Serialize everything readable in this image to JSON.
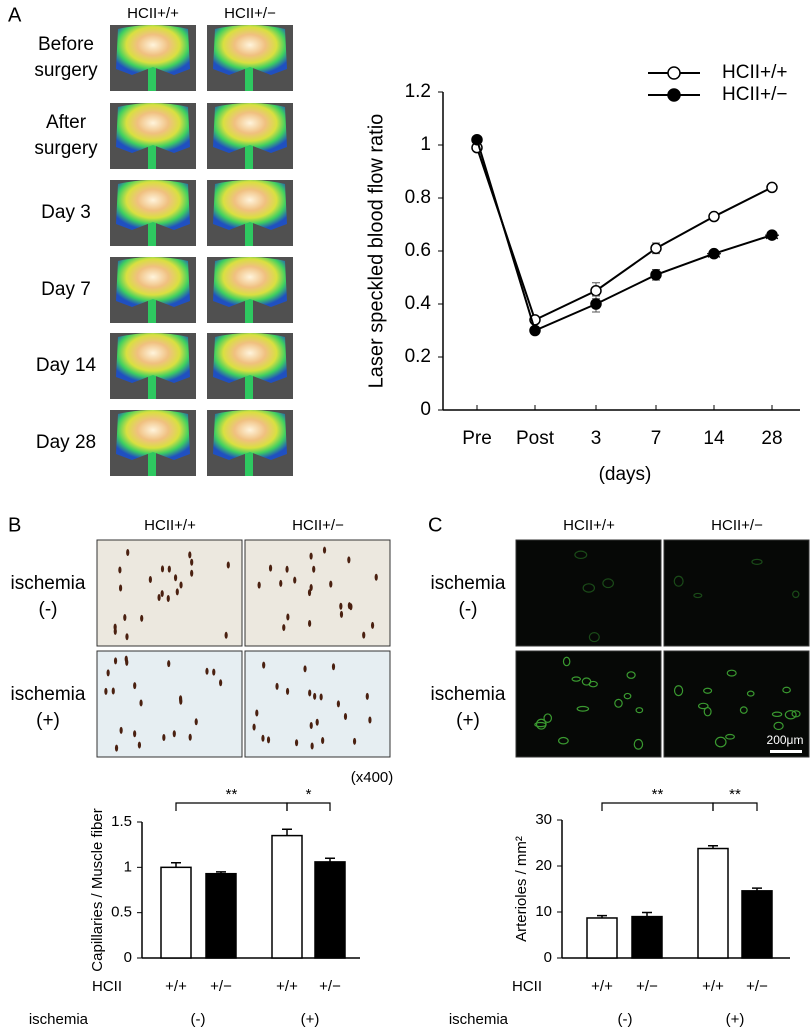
{
  "figure": {
    "panel_a": {
      "label": "A",
      "columns": [
        "HCII+/+",
        "HCII+/−"
      ],
      "rows": [
        [
          "Before",
          "surgery"
        ],
        [
          "After",
          "surgery"
        ],
        [
          "Day 3"
        ],
        [
          "Day 7"
        ],
        [
          "Day 14"
        ],
        [
          "Day 28"
        ]
      ]
    },
    "panel_b": {
      "label": "B",
      "columns": [
        "HCII+/+",
        "HCII+/−"
      ],
      "rows": [
        [
          "ischemia",
          "(-)"
        ],
        [
          "ischemia",
          "(+)"
        ]
      ],
      "magnification": "(x400)"
    },
    "panel_c": {
      "label": "C",
      "columns": [
        "HCII+/+",
        "HCII+/−"
      ],
      "rows": [
        [
          "ischemia",
          "(-)"
        ],
        [
          "ischemia",
          "(+)"
        ]
      ],
      "scale_bar": "200μm"
    }
  },
  "chart_data": [
    {
      "type": "line",
      "ylabel": "Laser speckled blood flow ratio",
      "xlabel": "(days)",
      "categories": [
        "Pre",
        "Post",
        "3",
        "7",
        "14",
        "28"
      ],
      "ylim": [
        0,
        1.2
      ],
      "yticks": [
        0,
        0.2,
        0.4,
        0.6,
        0.8,
        1,
        1.2
      ],
      "series": [
        {
          "name": "HCII+/+",
          "color": "#000000",
          "marker": "open",
          "values": [
            0.99,
            0.34,
            0.45,
            0.61,
            0.73,
            0.84
          ],
          "errors": [
            0.01,
            0.01,
            0.03,
            0.02,
            0.01,
            0.01
          ]
        },
        {
          "name": "HCII+/−",
          "color": "#000000",
          "marker": "filled",
          "values": [
            1.02,
            0.3,
            0.4,
            0.51,
            0.59,
            0.66
          ],
          "errors": [
            0.01,
            0.01,
            0.03,
            0.02,
            0.01,
            0.01
          ]
        }
      ],
      "annotations": [
        {
          "at": 3,
          "label": "*"
        },
        {
          "at": 4,
          "label": "**"
        },
        {
          "at": 5,
          "label": "**"
        }
      ],
      "legend": "upper right"
    },
    {
      "type": "bar",
      "ylabel": "Capillaries / Muscle fiber",
      "category_label": "HCII",
      "categories": [
        "+/+",
        "+/−",
        "+/+",
        "+/−"
      ],
      "group_label": "ischemia",
      "groups": [
        "(-)",
        "(+)"
      ],
      "values": [
        1.0,
        0.93,
        1.35,
        1.06
      ],
      "errors": [
        0.05,
        0.02,
        0.07,
        0.04
      ],
      "colors": [
        "#ffffff",
        "#000000",
        "#ffffff",
        "#000000"
      ],
      "ylim": [
        0,
        1.5
      ],
      "yticks": [
        0,
        0.5,
        1,
        1.5
      ],
      "brackets": [
        {
          "from": 0,
          "to": 2,
          "label": "**"
        },
        {
          "from": 2,
          "to": 3,
          "label": "*"
        }
      ]
    },
    {
      "type": "bar",
      "ylabel": "Arterioles / mm²",
      "category_label": "HCII",
      "categories": [
        "+/+",
        "+/−",
        "+/+",
        "+/−"
      ],
      "group_label": "ischemia",
      "groups": [
        "(-)",
        "(+)"
      ],
      "values": [
        8.7,
        9.0,
        23.8,
        14.6
      ],
      "errors": [
        0.5,
        0.9,
        0.6,
        0.6
      ],
      "colors": [
        "#ffffff",
        "#000000",
        "#ffffff",
        "#000000"
      ],
      "ylim": [
        0,
        30
      ],
      "yticks": [
        0,
        10,
        20,
        30
      ],
      "brackets": [
        {
          "from": 0,
          "to": 2,
          "label": "**"
        },
        {
          "from": 2,
          "to": 3,
          "label": "**"
        }
      ]
    }
  ]
}
